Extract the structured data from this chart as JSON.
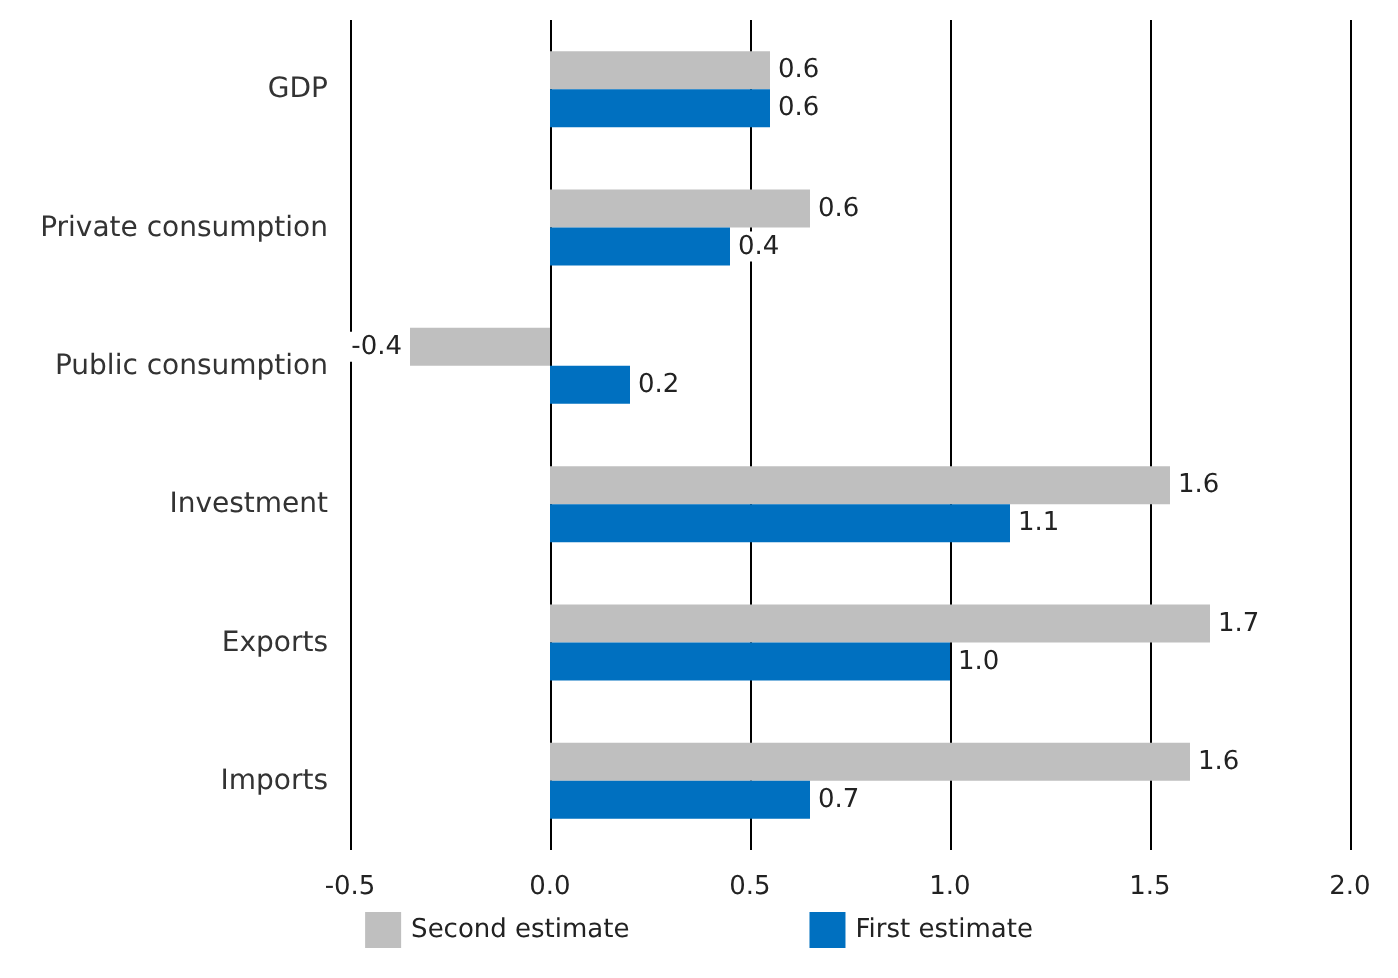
{
  "chart_data": {
    "type": "bar",
    "orientation": "horizontal",
    "categories": [
      "GDP",
      "Private consumption",
      "Public consumption",
      "Investment",
      "Exports",
      "Imports"
    ],
    "series": [
      {
        "name": "Second estimate",
        "color": "#bfbfbf",
        "values": [
          0.55,
          0.65,
          -0.35,
          1.55,
          1.65,
          1.6
        ],
        "value_labels": [
          "0.6",
          "0.6",
          "-0.4",
          "1.6",
          "1.7",
          "1.6"
        ]
      },
      {
        "name": "First estimate",
        "color": "#0070c0",
        "values": [
          0.55,
          0.45,
          0.2,
          1.15,
          1.0,
          0.65
        ],
        "value_labels": [
          "0.6",
          "0.4",
          "0.2",
          "1.1",
          "1.0",
          "0.7"
        ]
      }
    ],
    "xlim": [
      -0.5,
      2.0
    ],
    "xticks": [
      {
        "value": -0.5,
        "label": "-0.5"
      },
      {
        "value": 0,
        "label": "0.0"
      },
      {
        "value": 0.5,
        "label": "0.5"
      },
      {
        "value": 1,
        "label": "1.0"
      },
      {
        "value": 1.5,
        "label": "1.5"
      },
      {
        "value": 2,
        "label": "2.0"
      }
    ],
    "grid": "x",
    "legend": "bottom"
  }
}
